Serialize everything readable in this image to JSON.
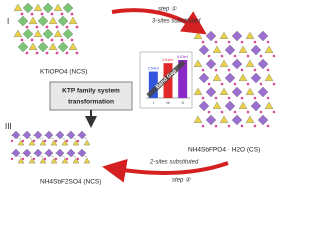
{
  "labels": {
    "structure_1_numeral": "I",
    "structure_1_name": "KTiOPO4 (NCS)",
    "structure_2_numeral": "II",
    "structure_2_name": "NH4SbFPO4 · H2O (CS)",
    "structure_3_numeral": "III",
    "structure_3_name": "NH4SbF2SO4 (NCS)",
    "box_line_1": "KTP family system",
    "box_line_2": "transformation",
    "step_1": "step ①",
    "step_1_text": "3-sites substituted",
    "step_2": "step ②",
    "step_2_text": "2-sites substituted"
  },
  "band_gap": {
    "title": "Band Gap",
    "categories": [
      "I",
      "III",
      "II"
    ],
    "values": [
      3.5,
      4.61,
      5.03
    ],
    "value_labels": [
      "3.50eV",
      "4.61eV",
      "5.03eV"
    ],
    "colors": [
      "#3355dd",
      "#e02a2a",
      "#8a2bc8"
    ]
  }
}
